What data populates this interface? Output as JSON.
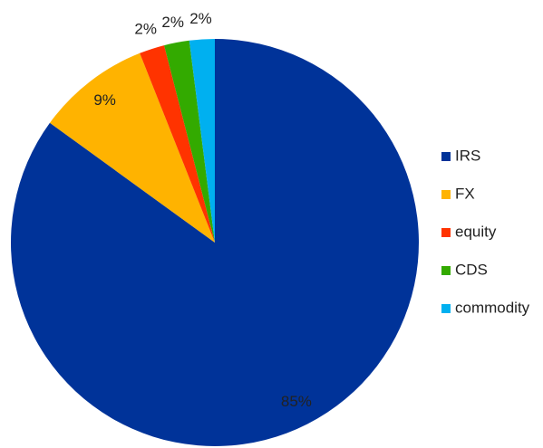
{
  "chart_data": {
    "type": "pie",
    "categories": [
      "IRS",
      "FX",
      "equity",
      "CDS",
      "commodity"
    ],
    "values": [
      85,
      9,
      2,
      2,
      2
    ],
    "value_labels": [
      "85%",
      "9%",
      "2%",
      "2%",
      "2%"
    ],
    "colors": [
      "#003399",
      "#ffb300",
      "#ff3300",
      "#33aa00",
      "#00b0f0"
    ],
    "legend": "right"
  }
}
